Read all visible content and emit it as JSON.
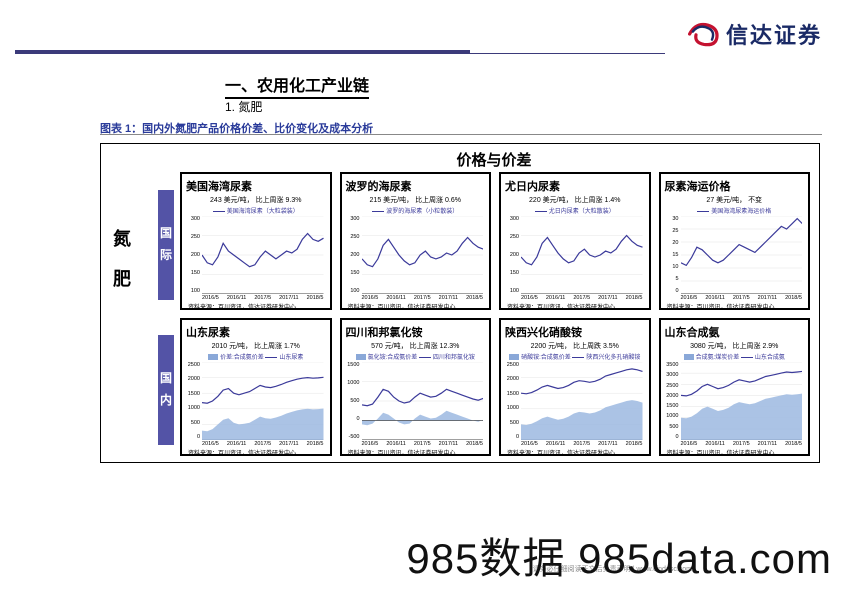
{
  "company": {
    "name": "信达证券",
    "logo_colors": {
      "red": "#c41230",
      "navy": "#1a2a66"
    }
  },
  "section_title": "一、农用化工产业链",
  "sub_title": "1. 氮肥",
  "figure_caption": "图表 1：国内外氮肥产品价格价差、比价变化及成本分析",
  "top_header": "价格与价差",
  "category_label": "氮肥",
  "regions": [
    {
      "label": "国际"
    },
    {
      "label": "国内"
    }
  ],
  "xaxis_labels": [
    "2016/5",
    "2016/11",
    "2017/5",
    "2017/11",
    "2018/5"
  ],
  "source_text": "资料来源：百川资讯，信达证券研发中心",
  "charts_intl": [
    {
      "title": "美国海湾尿素",
      "value_text": "243 美元/吨，",
      "change_text": "比上周涨 9.3%",
      "legend_items": [
        {
          "type": "line",
          "label": "美国海湾尿素（大粒袋装）"
        }
      ],
      "ylim": [
        100,
        300
      ],
      "ytick_step": 50,
      "series_color": "#3b3a9a",
      "points": [
        200,
        180,
        175,
        195,
        230,
        210,
        200,
        190,
        180,
        170,
        175,
        195,
        210,
        200,
        190,
        200,
        210,
        205,
        215,
        240,
        255,
        240,
        235,
        243
      ]
    },
    {
      "title": "波罗的海尿素",
      "value_text": "215 美元/吨，",
      "change_text": "比上周涨 0.6%",
      "legend_items": [
        {
          "type": "line",
          "label": "波罗的海尿素（小粒散装）"
        }
      ],
      "ylim": [
        100,
        300
      ],
      "ytick_step": 50,
      "series_color": "#3b3a9a",
      "points": [
        190,
        175,
        170,
        190,
        225,
        240,
        220,
        200,
        185,
        175,
        180,
        200,
        210,
        195,
        190,
        195,
        205,
        200,
        210,
        230,
        245,
        230,
        220,
        215
      ]
    },
    {
      "title": "尤日内尿素",
      "value_text": "220 美元/吨，",
      "change_text": "比上周涨 1.4%",
      "legend_items": [
        {
          "type": "line",
          "label": "尤日内尿素（大粒散装）"
        }
      ],
      "ylim": [
        100,
        300
      ],
      "ytick_step": 50,
      "series_color": "#3b3a9a",
      "points": [
        195,
        180,
        175,
        195,
        230,
        245,
        225,
        205,
        190,
        180,
        185,
        205,
        215,
        200,
        195,
        200,
        210,
        205,
        215,
        235,
        250,
        235,
        225,
        220
      ]
    },
    {
      "title": "尿素海运价格",
      "value_text": "27 美元/吨，",
      "change_text": "不变",
      "legend_items": [
        {
          "type": "line",
          "label": "美国海湾尿素海运价格"
        }
      ],
      "ylim": [
        0,
        30
      ],
      "ytick_step": 5,
      "series_color": "#3b3a9a",
      "points": [
        12,
        11,
        14,
        18,
        17,
        15,
        13,
        12,
        13,
        15,
        17,
        19,
        18,
        17,
        16,
        18,
        20,
        22,
        24,
        26,
        25,
        27,
        29,
        27
      ]
    }
  ],
  "charts_dom": [
    {
      "title": "山东尿素",
      "value_text": "2010 元/吨，",
      "change_text": "比上周涨 1.7%",
      "legend_items": [
        {
          "type": "fill",
          "label": "价差:合成氨价差"
        },
        {
          "type": "line",
          "label": "山东尿素"
        }
      ],
      "ylim": [
        0,
        2500
      ],
      "ytick_step": 500,
      "series_color": "#3b3a9a",
      "area_color": "#9cb8e0",
      "area_baseline": 0,
      "points": [
        1200,
        1180,
        1250,
        1400,
        1600,
        1650,
        1500,
        1450,
        1500,
        1550,
        1650,
        1750,
        1700,
        1680,
        1720,
        1780,
        1850,
        1900,
        1950,
        1980,
        2000,
        1980,
        1990,
        2010
      ],
      "area": [
        300,
        280,
        350,
        500,
        650,
        700,
        550,
        500,
        520,
        550,
        650,
        750,
        700,
        680,
        720,
        780,
        850,
        900,
        950,
        980,
        1000,
        980,
        990,
        1010
      ]
    },
    {
      "title": "四川和邦氯化铵",
      "value_text": "570 元/吨，",
      "change_text": "比上周涨 12.3%",
      "legend_items": [
        {
          "type": "fill",
          "label": "氯化铵:合成氨价差"
        },
        {
          "type": "line",
          "label": "四川和邦氯化铵"
        }
      ],
      "ylim": [
        -500,
        1500
      ],
      "ytick_step": 500,
      "series_color": "#3b3a9a",
      "area_color": "#9cb8e0",
      "area_baseline": 0,
      "points": [
        400,
        380,
        420,
        600,
        800,
        750,
        600,
        500,
        450,
        480,
        600,
        700,
        650,
        600,
        620,
        700,
        800,
        750,
        700,
        650,
        600,
        550,
        520,
        570
      ],
      "area": [
        -100,
        -120,
        -80,
        50,
        200,
        150,
        50,
        -50,
        -100,
        -80,
        50,
        150,
        100,
        50,
        70,
        150,
        250,
        200,
        150,
        100,
        50,
        0,
        -30,
        20
      ]
    },
    {
      "title": "陕西兴化硝酸铵",
      "value_text": "2200 元/吨，",
      "change_text": "比上周跌 3.5%",
      "legend_items": [
        {
          "type": "fill",
          "label": "硝酸铵:合成氨价差"
        },
        {
          "type": "line",
          "label": "陕西兴化多孔硝酸铵"
        }
      ],
      "ylim": [
        0,
        2500
      ],
      "ytick_step": 500,
      "series_color": "#3b3a9a",
      "area_color": "#9cb8e0",
      "area_baseline": 0,
      "points": [
        1500,
        1480,
        1520,
        1600,
        1700,
        1750,
        1700,
        1650,
        1680,
        1750,
        1850,
        1900,
        1880,
        1850,
        1880,
        1950,
        2050,
        2100,
        2150,
        2200,
        2250,
        2280,
        2250,
        2200
      ],
      "area": [
        500,
        480,
        520,
        600,
        700,
        750,
        700,
        650,
        680,
        750,
        850,
        900,
        880,
        850,
        880,
        950,
        1050,
        1100,
        1150,
        1200,
        1250,
        1280,
        1250,
        1200
      ]
    },
    {
      "title": "山东合成氨",
      "value_text": "3080 元/吨，",
      "change_text": "比上周涨 2.9%",
      "legend_items": [
        {
          "type": "fill",
          "label": "合成氨:煤炭价差"
        },
        {
          "type": "line",
          "label": "山东合成氨"
        }
      ],
      "ylim": [
        0,
        3500
      ],
      "ytick_step": 500,
      "series_color": "#3b3a9a",
      "area_color": "#9cb8e0",
      "area_baseline": 0,
      "points": [
        2000,
        1980,
        2050,
        2200,
        2400,
        2500,
        2400,
        2300,
        2350,
        2450,
        2600,
        2700,
        2650,
        2600,
        2650,
        2750,
        2850,
        2900,
        2950,
        3000,
        3050,
        3030,
        3050,
        3080
      ],
      "area": [
        1000,
        980,
        1050,
        1200,
        1400,
        1500,
        1400,
        1300,
        1350,
        1450,
        1600,
        1700,
        1650,
        1600,
        1650,
        1750,
        1850,
        1900,
        1950,
        2000,
        2050,
        2030,
        2050,
        2080
      ]
    }
  ],
  "watermark": "985数据 985data.com",
  "footer_small": "请务必仔细阅读正文后免责声明 | www.cindasc.com",
  "colors": {
    "purple_bar": "#5353a6",
    "navy_text": "#2a3b9a",
    "grid": "#cccccc"
  }
}
